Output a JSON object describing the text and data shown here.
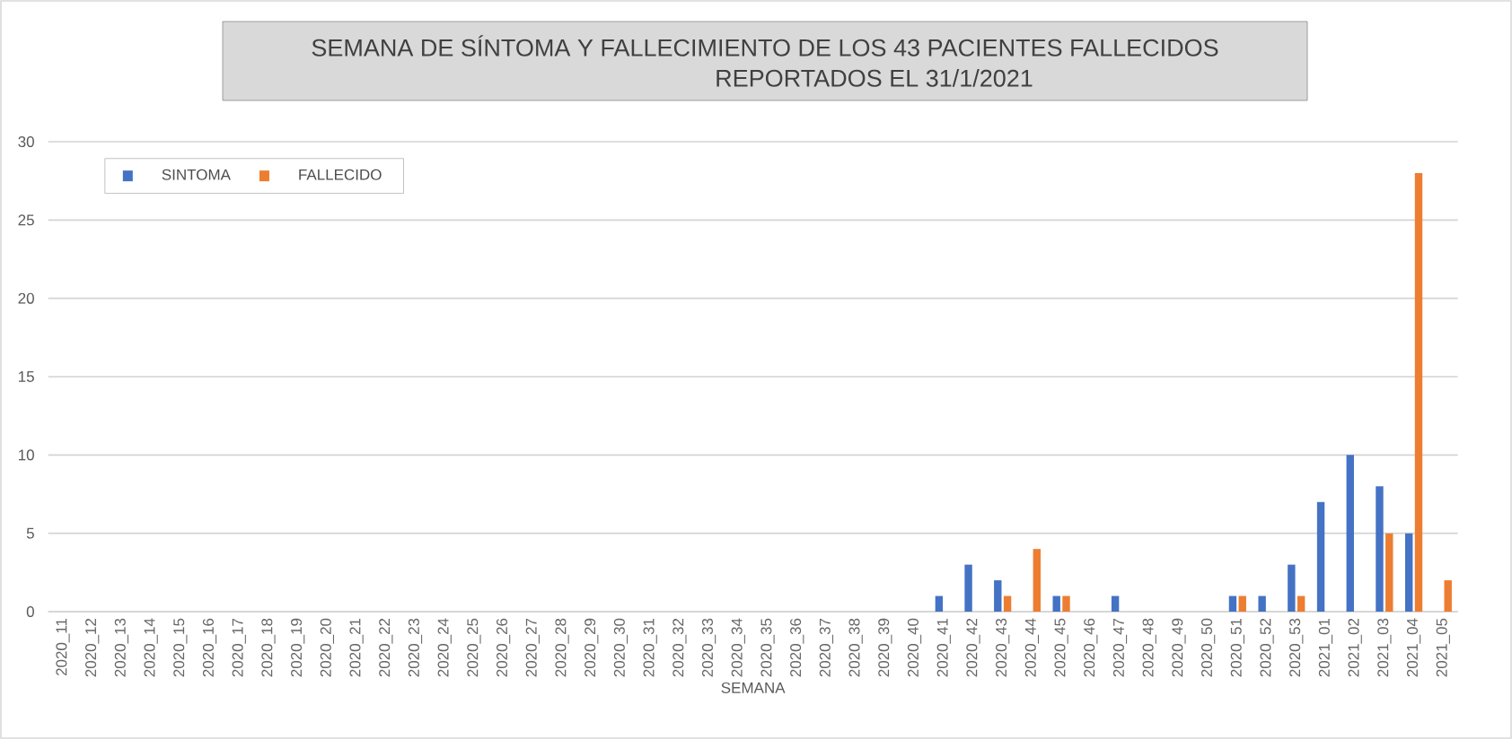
{
  "chart_data": {
    "type": "bar",
    "title": "SEMANA DE SÍNTOMA Y FALLECIMIENTO DE LOS 43 PACIENTES FALLECIDOS",
    "subtitle": "REPORTADOS EL 31/1/2021",
    "xlabel": "SEMANA",
    "categories": [
      "2020_11",
      "2020_12",
      "2020_13",
      "2020_14",
      "2020_15",
      "2020_16",
      "2020_17",
      "2020_18",
      "2020_19",
      "2020_20",
      "2020_21",
      "2020_22",
      "2020_23",
      "2020_24",
      "2020_25",
      "2020_26",
      "2020_27",
      "2020_28",
      "2020_29",
      "2020_30",
      "2020_31",
      "2020_32",
      "2020_33",
      "2020_34",
      "2020_35",
      "2020_36",
      "2020_37",
      "2020_38",
      "2020_39",
      "2020_40",
      "2020_41",
      "2020_42",
      "2020_43",
      "2020_44",
      "2020_45",
      "2020_46",
      "2020_47",
      "2020_48",
      "2020_49",
      "2020_50",
      "2020_51",
      "2020_52",
      "2020_53",
      "2021_01",
      "2021_02",
      "2021_03",
      "2021_04",
      "2021_05"
    ],
    "series": [
      {
        "name": "SINTOMA",
        "color": "#4472c4",
        "values": [
          0,
          0,
          0,
          0,
          0,
          0,
          0,
          0,
          0,
          0,
          0,
          0,
          0,
          0,
          0,
          0,
          0,
          0,
          0,
          0,
          0,
          0,
          0,
          0,
          0,
          0,
          0,
          0,
          0,
          0,
          1,
          3,
          2,
          0,
          1,
          0,
          1,
          0,
          0,
          0,
          1,
          1,
          3,
          7,
          10,
          8,
          5,
          0
        ]
      },
      {
        "name": "FALLECIDO",
        "color": "#ed7d31",
        "values": [
          0,
          0,
          0,
          0,
          0,
          0,
          0,
          0,
          0,
          0,
          0,
          0,
          0,
          0,
          0,
          0,
          0,
          0,
          0,
          0,
          0,
          0,
          0,
          0,
          0,
          0,
          0,
          0,
          0,
          0,
          0,
          0,
          1,
          4,
          1,
          0,
          0,
          0,
          0,
          0,
          1,
          0,
          1,
          0,
          0,
          5,
          28,
          2
        ]
      }
    ],
    "ylim": [
      0,
      30
    ],
    "yticks": [
      0,
      5,
      10,
      15,
      20,
      25,
      30
    ],
    "grid": "y",
    "legend": "top left"
  }
}
